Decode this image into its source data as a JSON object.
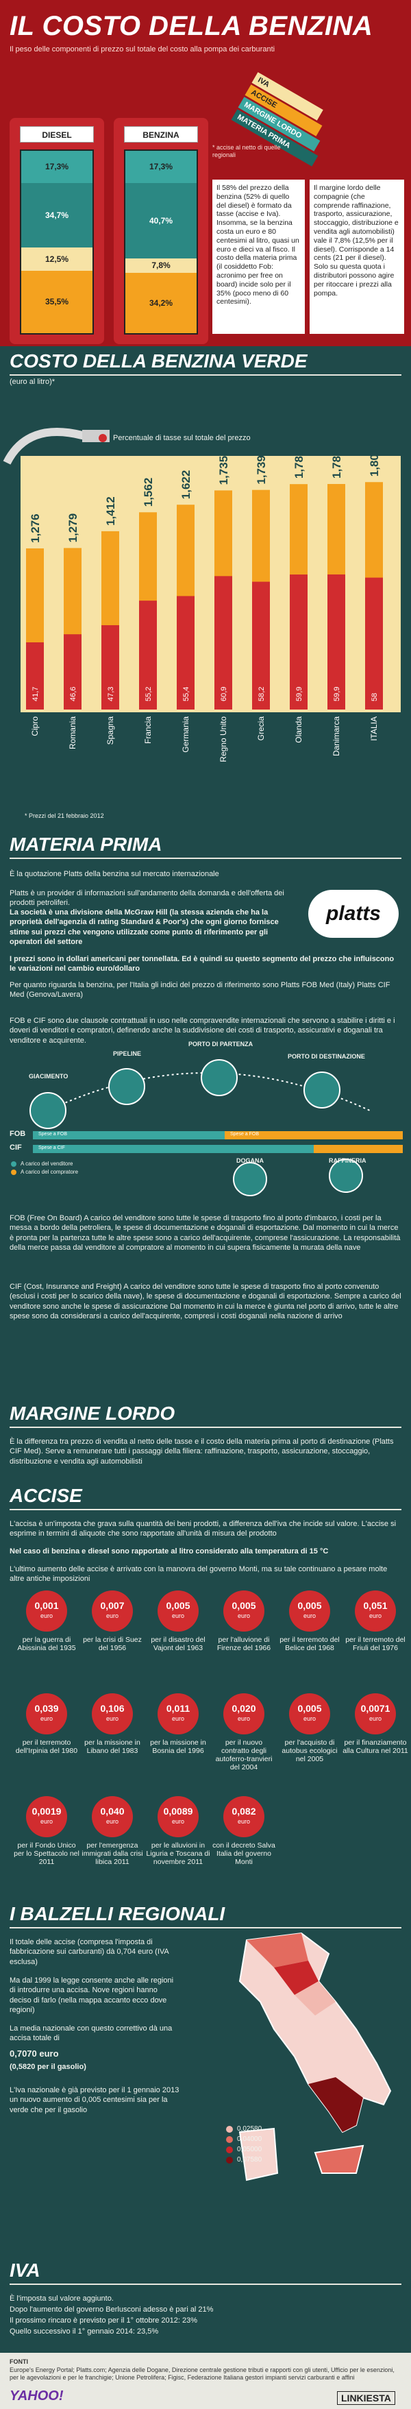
{
  "header": {
    "title": "IL COSTO DELLA BENZINA",
    "subtitle": "Il peso delle componenti di prezzo sul totale del costo alla pompa dei carburanti",
    "legend_title": "Il peso",
    "legend_items": [
      "IVA",
      "ACCISE",
      "MARGINE LORDO",
      "MATERIA PRIMA"
    ],
    "note": "* accise al netto di quelle regionali",
    "diesel": {
      "label": "DIESEL",
      "values": [
        "17,3%",
        "34,7%",
        "12,5%",
        "35,5%"
      ]
    },
    "benzina": {
      "label": "BENZINA",
      "values": [
        "17,3%",
        "40,7%",
        "7,8%",
        "34,2%"
      ]
    },
    "box1": "Il 58% del prezzo della benzina (52% di quello del diesel) è formato da tasse (accise e Iva). Insomma, se la benzina costa un euro e 80 centesimi al litro, quasi un euro e dieci va al fisco. Il costo della materia prima (il cosiddetto Fob: acronimo per free on board) incide solo per il 35% (poco meno di 60 centesimi).",
    "box2": "Il margine lordo delle compagnie (che comprende raffinazione, trasporto, assicurazione, stoccaggio, distribuzione e vendita agli automobilisti) vale il 7,8% (12,5% per il diesel). Corrisponde a 14 cents (21 per il diesel). Solo su questa quota i distributori possono agire per ritoccare i prezzi alla pompa."
  },
  "verde": {
    "title": "COSTO DELLA BENZINA VERDE",
    "unit": "(euro al litro)*",
    "legend": "Percentuale di tasse sul totale del prezzo",
    "footnote": "*  Prezzi del 21 febbraio 2012"
  },
  "chart_data": {
    "type": "bar",
    "title": "COSTO DELLA BENZINA VERDE",
    "ylabel": "(euro al litro)*",
    "categories": [
      "Cipro",
      "Romania",
      "Spagna",
      "Francia",
      "Germania",
      "Regno Unito",
      "Grecia",
      "Olanda",
      "Danimarca",
      "ITALIA"
    ],
    "values": [
      1.276,
      1.279,
      1.412,
      1.562,
      1.622,
      1.735,
      1.739,
      1.785,
      1.786,
      1.801
    ],
    "value_labels": [
      "1,276",
      "1,279",
      "1,412",
      "1,562",
      "1,622",
      "1,735",
      "1,739",
      "1,785",
      "1,786",
      "1,801"
    ],
    "series": [
      {
        "name": "Percentuale di tasse sul totale del prezzo",
        "values": [
          41.7,
          46.6,
          47.3,
          55.2,
          55.4,
          60.9,
          58.2,
          59.9,
          59.9,
          58
        ],
        "labels": [
          "41,7",
          "46,6",
          "47,3",
          "55,2",
          "55,4",
          "60,9",
          "58,2",
          "59,9",
          "59,9",
          "58"
        ]
      }
    ],
    "ylim": [
      0,
      1.9
    ]
  },
  "materia": {
    "title": "MATERIA PRIMA",
    "intro": "È la quotazione Platts della benzina sul mercato internazionale",
    "p1": "Platts è un provider di informazioni sull'andamento della domanda e dell'offerta dei prodotti petroliferi.",
    "p1b": "La società è una divisione della McGraw Hill (la stessa azienda che ha la proprietà dell'agenzia di rating Standard & Poor's) che ogni giorno fornisce stime sui prezzi che vengono utilizzate come punto di riferimento per gli operatori del settore",
    "logo": "platts",
    "p2": "I prezzi sono in dollari americani per tonnellata. Ed è quindi su questo segmento del prezzo che influiscono le variazioni nel cambio euro/dollaro",
    "p3": "Per quanto riguarda la benzina, per l'Italia gli indici del prezzo di riferimento sono Platts FOB Med (Italy) Platts CIF Med (Genova/Lavera)",
    "p4": "FOB e CIF sono due clausole contrattuali in uso nelle compravendite internazionali che servono a stabilire i diritti e i doveri di venditori e compratori, definendo anche la suddivisione dei costi di trasporto, assicurativi e doganali tra venditore e acquirente.",
    "stages": [
      "GIACIMENTO",
      "PIPELINE",
      "PORTO DI PARTENZA",
      "PORTO DI DESTINAZIONE",
      "DOGANA",
      "RAFFINERIA"
    ],
    "fob": "FOB",
    "cif": "CIF",
    "bar_spese": "Spese a FOB",
    "bar_spese2": "Spese a CIF",
    "legend_v": "A carico del venditore",
    "legend_c": "A carico del compratore",
    "p5": "FOB (Free On Board) A carico del venditore sono tutte le spese di trasporto fino al porto d'imbarco, i costi per la messa a bordo della petroliera, le spese di documentazione e doganali di esportazione. Dal momento in cui la merce è pronta per la partenza tutte le altre spese sono a carico dell'acquirente, comprese l'assicurazione. La responsabilità della merce passa dal venditore al compratore al momento in cui supera fisicamente la murata della nave",
    "p6": "CIF (Cost, Insurance and Freight) A carico del venditore sono tutte le spese di trasporto fino al porto convenuto (esclusi i costi per lo scarico della nave), le spese di documentazione e doganali di esportazione. Sempre a carico del venditore sono anche le spese di assicurazione Dal momento in cui la merce è giunta nel porto di arrivo, tutte le altre spese sono da considerarsi a carico dell'acquirente, compresi i costi doganali nella nazione di arrivo"
  },
  "margine": {
    "title": "MARGINE LORDO",
    "text": "È la differenza tra prezzo di vendita al netto delle tasse e il costo della materia prima al porto di destinazione (Platts CIF Med). Serve a remunerare tutti i passaggi della filiera: raffinazione, trasporto, assicurazione, stoccaggio, distribuzione e vendita agli automobilisti"
  },
  "accise": {
    "title": "ACCISE",
    "p1": "L'accisa è un'imposta che grava sulla quantità dei beni prodotti, a differenza dell'iva che incide sul valore. L'accise si esprime in termini di aliquote che sono rapportate all'unità di misura del prodotto",
    "p2": "Nel caso di benzina e diesel sono rapportate al litro considerato alla temperatura di 15 °C",
    "p3": "L'ultimo aumento delle accise è arrivato con la manovra del governo Monti, ma su tale continuano a pesare molte altre antiche imposizioni",
    "unit": "euro",
    "items": [
      {
        "v": "0,001",
        "l": "per la guerra di Abissinia del 1935"
      },
      {
        "v": "0,007",
        "l": "per la crisi di Suez del 1956"
      },
      {
        "v": "0,005",
        "l": "per il disastro del Vajont del 1963"
      },
      {
        "v": "0,005",
        "l": "per l'alluvione di Firenze del 1966"
      },
      {
        "v": "0,005",
        "l": "per il terremoto del Belice del 1968"
      },
      {
        "v": "0,051",
        "l": "per il terremoto del Friuli del 1976"
      },
      {
        "v": "0,039",
        "l": "per il terremoto dell'Irpinia del 1980"
      },
      {
        "v": "0,106",
        "l": "per la missione in Libano del 1983"
      },
      {
        "v": "0,011",
        "l": "per la missione in Bosnia del 1996"
      },
      {
        "v": "0,020",
        "l": "per il nuovo contratto degli autoferro-tranvieri del 2004"
      },
      {
        "v": "0,005",
        "l": "per l'acquisto di autobus ecologici nel 2005"
      },
      {
        "v": "0,0071",
        "l": "per il finanziamento alla Cultura nel 2011"
      },
      {
        "v": "0,0019",
        "l": "per il Fondo Unico per lo Spettacolo nel 2011"
      },
      {
        "v": "0,040",
        "l": "per l'emergenza immigrati dalla crisi libica 2011"
      },
      {
        "v": "0,0089",
        "l": "per le alluvioni in Liguria e Toscana di novembre 2011"
      },
      {
        "v": "0,082",
        "l": "con il decreto Salva Italia del governo Monti"
      }
    ]
  },
  "balzelli": {
    "title": "I BALZELLI REGIONALI",
    "p1": "Il totale delle accise (compresa l'imposta di fabbricazione sui carburanti) dà 0,704 euro (IVA esclusa)",
    "p2": "Ma dal 1999 la legge consente anche alle regioni di introdurre una accisa. Nove regioni hanno deciso di farlo (nella mappa accanto ecco dove regioni)",
    "p3": "La media nazionale con questo correttivo dà una accisa totale di",
    "v1": "0,7070 euro",
    "v2": "(0,5820 per il gasolio)",
    "p4": "L'Iva nazionale è già previsto per il 1 gennaio 2013 un nuovo aumento di 0,005 centesimi sia per la verde che per il gasolio",
    "map_legend": [
      "0,02580",
      "0,04000",
      "0,05000",
      "0,07580"
    ],
    "map_colors": [
      "#f2b9b0",
      "#e36b5f",
      "#c8262a",
      "#7e0f12"
    ]
  },
  "iva": {
    "title": "IVA",
    "l1": "È l'imposta sul valore aggiunto.",
    "l2": "Dopo l'aumento del governo Berlusconi adesso è pari al 21%",
    "l3": "Il prossimo rincaro è previsto per il 1° ottobre 2012: 23%",
    "l4": "Quello successivo il 1° gennaio 2014: 23,5%"
  },
  "footer": {
    "label": "FONTI",
    "text": "Europe's Energy Portal; Platts.com; Agenzia delle Dogane, Direzione centrale gestione tributi e rapporti con gli utenti, Ufficio per le esenzioni, per le agevolazioni e per le franchigie; Unione Petrolifera; Figisc, Federazione Italiana gestori impianti servizi carburanti e affini",
    "yahoo": "YAHOO!",
    "brand": "LINKIESTA"
  },
  "colors": {
    "bg": "#1f4a4a",
    "red": "#c4262c",
    "teal": "#3aa7a0",
    "orange": "#f4a21f",
    "cream": "#f7e3a6"
  }
}
